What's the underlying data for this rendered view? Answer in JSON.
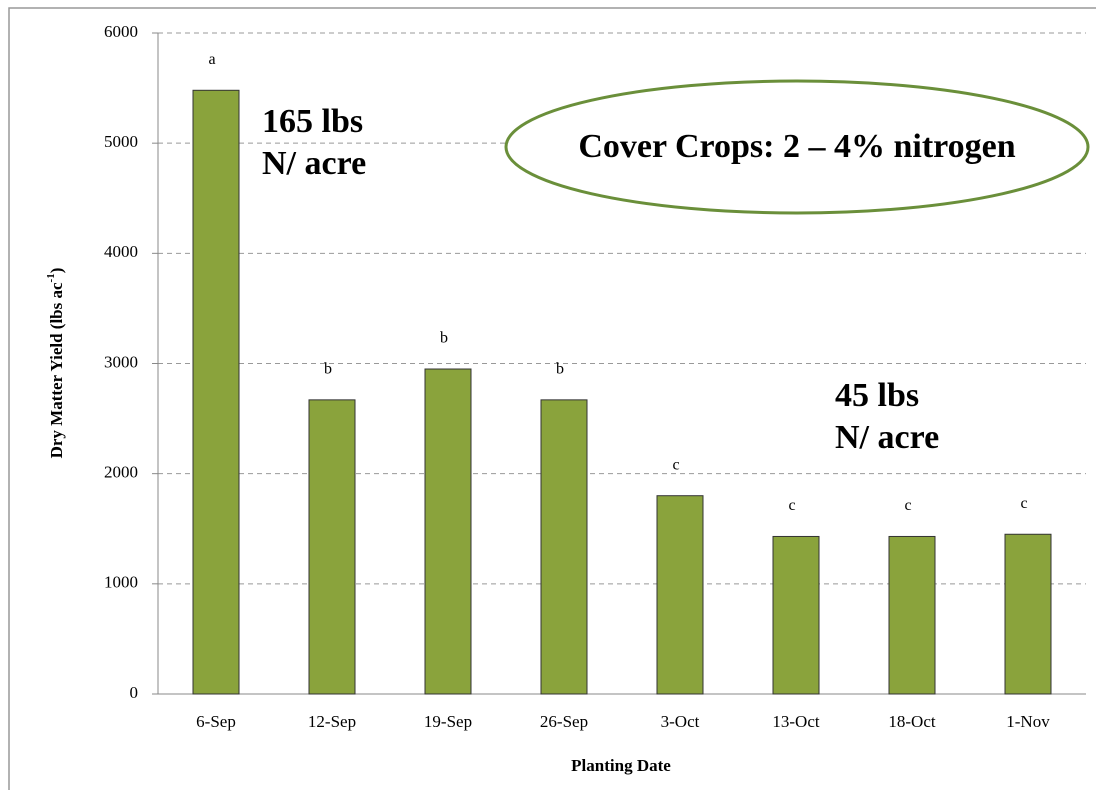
{
  "chart_data": {
    "type": "bar",
    "x_label": "Planting Date",
    "y_label": {
      "text": "Dry Matter Yield (lbs ac",
      "superscript": "-1",
      "suffix": ")"
    },
    "categories": [
      "6-Sep",
      "12-Sep",
      "19-Sep",
      "26-Sep",
      "3-Oct",
      "13-Oct",
      "18-Oct",
      "1-Nov"
    ],
    "values": [
      5480,
      2670,
      2950,
      2670,
      1800,
      1430,
      1430,
      1450
    ],
    "significance_labels": [
      "a",
      "b",
      "b",
      "b",
      "c",
      "c",
      "c",
      "c"
    ],
    "color": "#8aa33c",
    "ylim": [
      0,
      6000
    ],
    "yticks": [
      0,
      1000,
      2000,
      3000,
      4000,
      5000,
      6000
    ],
    "grid": true,
    "annotations": {
      "high": [
        "165 lbs",
        "N/ acre"
      ],
      "low": [
        "45 lbs",
        "N/ acre"
      ],
      "callout": "Cover Crops: 2 – 4% nitrogen"
    }
  }
}
